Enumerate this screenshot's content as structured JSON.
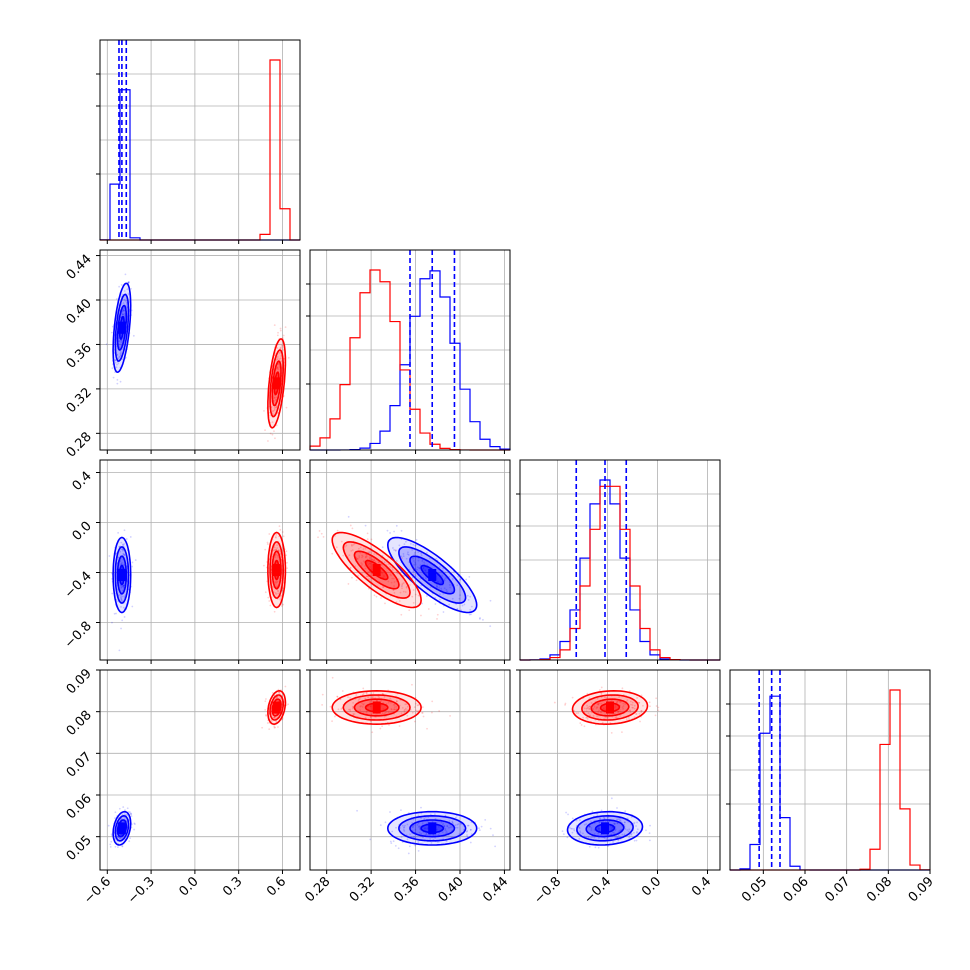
{
  "chart_data": {
    "type": "corner",
    "colors": {
      "series_a": "#0000ff",
      "series_b": "#ff0000"
    },
    "series": [
      {
        "color": "#0000ff",
        "means": [
          -0.5,
          0.375,
          -0.42,
          0.052
        ],
        "sd": [
          0.03,
          0.02,
          0.15,
          0.002
        ],
        "quantiles_16_50_84": [
          [
            -0.52,
            -0.5,
            -0.47
          ],
          [
            0.355,
            0.375,
            0.395
          ],
          [
            -0.65,
            -0.42,
            -0.25
          ],
          [
            0.049,
            0.052,
            0.054
          ]
        ]
      },
      {
        "color": "#ff0000",
        "means": [
          0.56,
          0.325,
          -0.38,
          0.081
        ],
        "sd": [
          0.03,
          0.02,
          0.15,
          0.002
        ]
      }
    ],
    "correlations": {
      "1-2": 0.5,
      "2-3": -0.8,
      "3-4": 0.1,
      "1-4": 0.3
    },
    "axes": [
      {
        "range": [
          -0.65,
          0.72
        ],
        "ticks": [
          -0.6,
          -0.3,
          0.0,
          0.3,
          0.6
        ],
        "tick_labels": [
          "−0.6",
          "−0.3",
          "0.0",
          "0.3",
          "0.6"
        ]
      },
      {
        "range": [
          0.265,
          0.445
        ],
        "ticks": [
          0.28,
          0.32,
          0.36,
          0.4,
          0.44
        ],
        "tick_labels": [
          "0.28",
          "0.32",
          "0.36",
          "0.40",
          "0.44"
        ]
      },
      {
        "range": [
          -1.1,
          0.5
        ],
        "ticks": [
          -0.8,
          -0.4,
          0.0,
          0.4
        ],
        "tick_labels": [
          "−0.8",
          "−0.4",
          "0.0",
          "0.4"
        ]
      },
      {
        "range": [
          0.042,
          0.09
        ],
        "ticks": [
          0.05,
          0.06,
          0.07,
          0.08,
          0.09
        ],
        "tick_labels": [
          "0.05",
          "0.06",
          "0.07",
          "0.08",
          "0.09"
        ]
      }
    ],
    "grid": true,
    "legend": "none"
  }
}
